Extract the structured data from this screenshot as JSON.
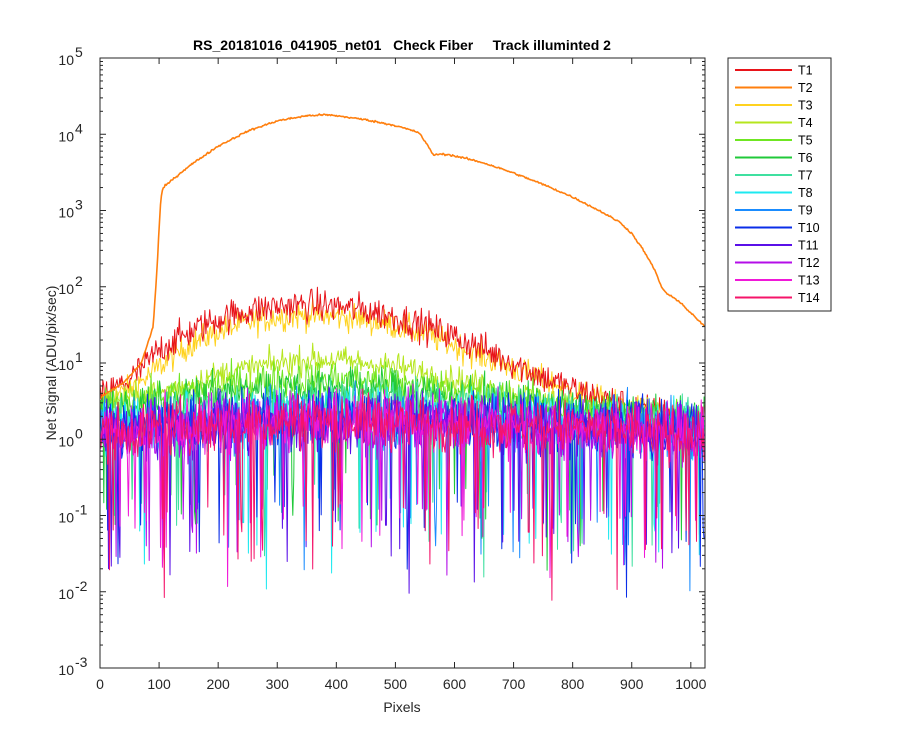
{
  "chart_data": {
    "type": "line",
    "title": "RS_20181016_041905_net01   Check Fiber     Track illuminted 2",
    "xlabel": "Pixels",
    "ylabel": "Net Signal (ADU/pix/sec)",
    "xlim": [
      0,
      1024
    ],
    "ylim": [
      0.001,
      100000
    ],
    "yscale": "log",
    "grid": false,
    "legend_position": "outside-top-right",
    "x_ticks": [
      0,
      100,
      200,
      300,
      400,
      500,
      600,
      700,
      800,
      900,
      1000
    ],
    "y_ticks": [
      {
        "value": 0.001,
        "base": "10",
        "exp": "-3"
      },
      {
        "value": 0.01,
        "base": "10",
        "exp": "-2"
      },
      {
        "value": 0.1,
        "base": "10",
        "exp": "-1"
      },
      {
        "value": 1,
        "base": "10",
        "exp": "0"
      },
      {
        "value": 10,
        "base": "10",
        "exp": "1"
      },
      {
        "value": 100,
        "base": "10",
        "exp": "2"
      },
      {
        "value": 1000,
        "base": "10",
        "exp": "3"
      },
      {
        "value": 10000,
        "base": "10",
        "exp": "4"
      },
      {
        "value": 100000,
        "base": "10",
        "exp": "5"
      }
    ],
    "series": [
      {
        "name": "T1",
        "color": "#e8141a",
        "noise": 0.35,
        "x": [
          0,
          50,
          80,
          100,
          150,
          200,
          250,
          300,
          330,
          350,
          400,
          450,
          500,
          550,
          600,
          650,
          700,
          750,
          800,
          850,
          900,
          950,
          1000,
          1024
        ],
        "y": [
          3.5,
          6,
          10,
          15,
          25,
          38,
          48,
          55,
          57,
          57,
          55,
          49,
          40,
          30,
          22,
          15,
          10,
          6.5,
          4.5,
          3.4,
          2.6,
          2.2,
          2.0,
          1.9
        ]
      },
      {
        "name": "T2",
        "color": "#ff7f0e",
        "noise": 0.02,
        "x": [
          0,
          40,
          70,
          90,
          97,
          100,
          103,
          106,
          110,
          150,
          200,
          250,
          300,
          350,
          380,
          400,
          450,
          500,
          540,
          555,
          565,
          575,
          590,
          620,
          650,
          700,
          750,
          800,
          850,
          880,
          900,
          920,
          940,
          950,
          960,
          980,
          1000,
          1024
        ],
        "y": [
          3.5,
          5.5,
          10,
          30,
          200,
          600,
          1400,
          1900,
          2100,
          3800,
          7000,
          11000,
          15000,
          17500,
          18000,
          17500,
          15500,
          13000,
          10500,
          7000,
          5300,
          5500,
          5400,
          4800,
          4200,
          3100,
          2200,
          1500,
          950,
          700,
          500,
          300,
          160,
          100,
          80,
          65,
          45,
          30
        ]
      },
      {
        "name": "T3",
        "color": "#ffd21f",
        "noise": 0.3,
        "x": [
          0,
          50,
          80,
          100,
          150,
          200,
          250,
          300,
          350,
          400,
          450,
          500,
          550,
          600,
          650,
          700,
          750,
          800,
          850,
          900,
          950,
          1000,
          1024
        ],
        "y": [
          3,
          4.5,
          6.5,
          9,
          17,
          26,
          34,
          40,
          42,
          41,
          37,
          31,
          24,
          17,
          12,
          8.5,
          6,
          4.2,
          3.2,
          2.5,
          2.1,
          1.9,
          1.8
        ]
      },
      {
        "name": "T4",
        "color": "#b5e61d",
        "noise": 0.3,
        "x": [
          0,
          100,
          200,
          300,
          350,
          400,
          500,
          600,
          700,
          800,
          900,
          1000,
          1024
        ],
        "y": [
          3,
          4,
          7,
          10,
          11,
          11,
          9,
          6,
          4,
          2.8,
          2.2,
          1.9,
          1.8
        ]
      },
      {
        "name": "T5",
        "color": "#6fe622",
        "noise": 0.4,
        "x": [
          0,
          100,
          200,
          300,
          400,
          500,
          600,
          700,
          800,
          900,
          1024
        ],
        "y": [
          2.5,
          3.5,
          5,
          6,
          6.2,
          5.5,
          4.3,
          3.3,
          2.5,
          2.1,
          1.8
        ]
      },
      {
        "name": "T6",
        "color": "#20c93a",
        "noise": 0.45,
        "x": [
          0,
          100,
          200,
          300,
          400,
          500,
          600,
          700,
          800,
          900,
          1024
        ],
        "y": [
          2.2,
          3,
          4,
          4.8,
          5,
          4.5,
          3.7,
          3,
          2.4,
          2,
          1.8
        ]
      },
      {
        "name": "T7",
        "color": "#3fe0a0",
        "noise": 0.5,
        "x": [
          0,
          200,
          400,
          600,
          800,
          1024
        ],
        "y": [
          1.8,
          2.6,
          3.2,
          2.8,
          2.1,
          1.7
        ]
      },
      {
        "name": "T8",
        "color": "#1de9f0",
        "noise": 0.6,
        "x": [
          0,
          200,
          400,
          600,
          800,
          1024
        ],
        "y": [
          1.5,
          1.9,
          2.2,
          2.0,
          1.7,
          1.5
        ]
      },
      {
        "name": "T9",
        "color": "#1a8cff",
        "noise": 0.6,
        "x": [
          0,
          200,
          400,
          600,
          800,
          1024
        ],
        "y": [
          1.4,
          1.8,
          2.1,
          1.9,
          1.6,
          1.4
        ]
      },
      {
        "name": "T10",
        "color": "#0a2ee8",
        "noise": 0.65,
        "x": [
          0,
          200,
          400,
          600,
          800,
          1024
        ],
        "y": [
          1.3,
          1.7,
          2.0,
          1.8,
          1.5,
          1.3
        ]
      },
      {
        "name": "T11",
        "color": "#5a10e8",
        "noise": 0.65,
        "x": [
          0,
          200,
          400,
          600,
          800,
          1024
        ],
        "y": [
          1.3,
          1.6,
          1.9,
          1.7,
          1.5,
          1.3
        ]
      },
      {
        "name": "T12",
        "color": "#b40ee8",
        "noise": 0.65,
        "x": [
          0,
          200,
          400,
          600,
          800,
          1024
        ],
        "y": [
          1.2,
          1.6,
          1.9,
          1.7,
          1.4,
          1.2
        ]
      },
      {
        "name": "T13",
        "color": "#f018d8",
        "noise": 0.6,
        "x": [
          0,
          200,
          400,
          600,
          800,
          1024
        ],
        "y": [
          1.2,
          1.6,
          1.8,
          1.7,
          1.4,
          1.2
        ]
      },
      {
        "name": "T14",
        "color": "#f5146a",
        "noise": 0.6,
        "x": [
          0,
          200,
          400,
          600,
          800,
          1024
        ],
        "y": [
          1.2,
          1.6,
          1.8,
          1.6,
          1.4,
          1.2
        ]
      }
    ]
  }
}
